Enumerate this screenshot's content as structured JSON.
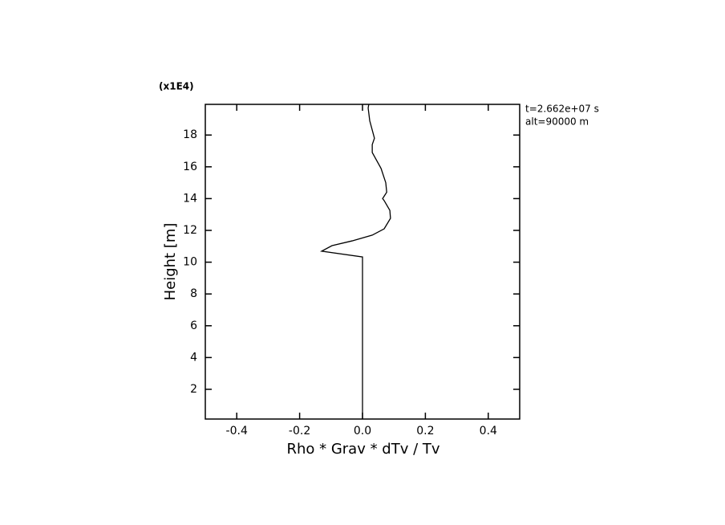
{
  "chart_data": {
    "type": "line",
    "xlabel": "Rho * Grav * dTv / Tv",
    "ylabel": "Height [m]",
    "y_multiplier": "(x1E4)",
    "annotations": [
      "t=2.662e+07 s",
      "alt=90000 m"
    ],
    "xlim": [
      -0.5,
      0.5
    ],
    "ylim": [
      0.13,
      19.93
    ],
    "xticks": [
      -0.4,
      -0.2,
      {
        "value": 0,
        "label": "0.0"
      },
      0.2,
      0.4
    ],
    "yticks": [
      2,
      4,
      6,
      8,
      10,
      12,
      14,
      16,
      18
    ],
    "series": [
      {
        "color": "#000000",
        "x": [
          0,
          0,
          -0.13,
          -0.097,
          -0.033,
          0.031,
          0.069,
          0.089,
          0.087,
          0.069,
          0.064,
          0.077,
          0.074,
          0.059,
          0.031,
          0.031,
          0.038,
          0.023,
          0.018,
          0.02
        ],
        "values": [
          0.13,
          10.33,
          10.69,
          11.04,
          11.34,
          11.7,
          12.1,
          12.76,
          13.26,
          13.87,
          14.0,
          14.4,
          15.0,
          15.9,
          16.9,
          17.4,
          17.8,
          18.9,
          19.7,
          19.93
        ]
      }
    ]
  }
}
